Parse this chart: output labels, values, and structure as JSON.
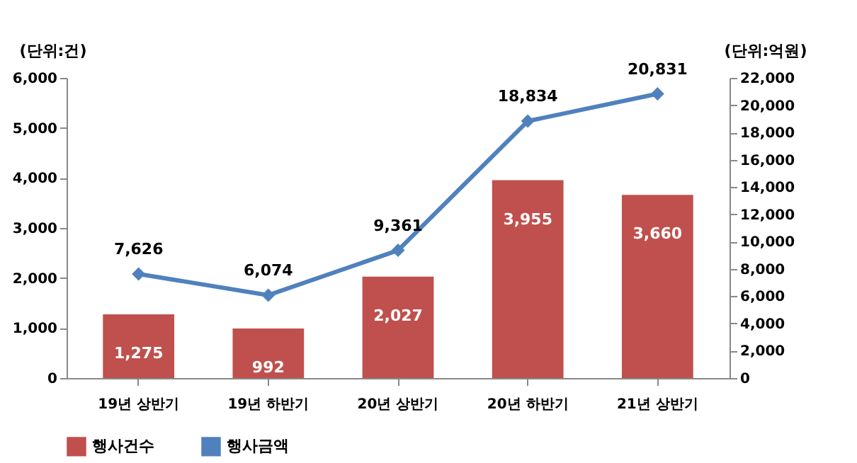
{
  "chart_data": {
    "type": "bar",
    "ylabel": "(단위:건)",
    "y2label": "(단위:억원)",
    "categories": [
      "19년 상반기",
      "19년 하반기",
      "20년 상반기",
      "20년 하반기",
      "21년 상반기"
    ],
    "series": [
      {
        "name": "행사건수",
        "color": "#c0504d",
        "values": [
          1275,
          992,
          2027,
          3955,
          3660
        ],
        "value_labels": [
          "1,275",
          "992",
          "2,027",
          "3,955",
          "3,660"
        ]
      },
      {
        "name": "행사금액",
        "type": "line",
        "axis": "y2",
        "color": "#4f81bd",
        "marker": "diamond",
        "values": [
          7626,
          6074,
          9361,
          18834,
          20831
        ],
        "value_labels": [
          "7,626",
          "6,074",
          "9,361",
          "18,834",
          "20,831"
        ]
      }
    ],
    "ylim": [
      0,
      6000
    ],
    "yticks": [
      {
        "value": 0,
        "label": "0"
      },
      {
        "value": 1000,
        "label": "1,000"
      },
      {
        "value": 2000,
        "label": "2,000"
      },
      {
        "value": 3000,
        "label": "3,000"
      },
      {
        "value": 4000,
        "label": "4,000"
      },
      {
        "value": 5000,
        "label": "5,000"
      },
      {
        "value": 6000,
        "label": "6,000"
      }
    ],
    "y2lim": [
      0,
      22000
    ],
    "y2ticks": [
      {
        "value": 0,
        "label": "0"
      },
      {
        "value": 2000,
        "label": "2,000"
      },
      {
        "value": 4000,
        "label": "4,000"
      },
      {
        "value": 6000,
        "label": "6,000"
      },
      {
        "value": 8000,
        "label": "8,000"
      },
      {
        "value": 10000,
        "label": "10,000"
      },
      {
        "value": 12000,
        "label": "12,000"
      },
      {
        "value": 14000,
        "label": "14,000"
      },
      {
        "value": 16000,
        "label": "16,000"
      },
      {
        "value": 18000,
        "label": "18,000"
      },
      {
        "value": 20000,
        "label": "20,000"
      },
      {
        "value": 22000,
        "label": "22,000"
      }
    ],
    "grid": false,
    "legend": "bottom"
  }
}
